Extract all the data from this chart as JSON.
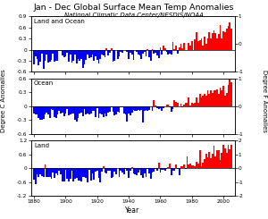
{
  "title": "Jan - Dec Global Surface Mean Temp Anomalies",
  "subtitle": "National Climatic Data Center/NESDIS/NOAA",
  "xlabel": "Year",
  "ylabel_left": "Degree C Anomalies",
  "ylabel_right": "Degree F Anomalies",
  "years_start": 1880,
  "years_end": 2005,
  "panels": [
    {
      "label": "Land and Ocean",
      "ylim_c": [
        -0.6,
        0.9
      ],
      "ylim_f": [
        -1.0,
        1.0
      ],
      "yticks_c": [
        0.9,
        0.6,
        0.3,
        0.0,
        -0.3,
        -0.6
      ],
      "yticks_f": [
        1.0,
        0.0,
        -1.0
      ]
    },
    {
      "label": "Ocean",
      "ylim_c": [
        -0.6,
        0.6
      ],
      "ylim_f": [
        -1.0,
        1.0
      ],
      "yticks_c": [
        0.6,
        0.3,
        0.0,
        -0.3,
        -0.6
      ],
      "yticks_f": [
        1.0,
        0.0,
        -1.0
      ]
    },
    {
      "label": "Land",
      "ylim_c": [
        -1.2,
        1.2
      ],
      "ylim_f": [
        -2.0,
        2.0
      ],
      "yticks_c": [
        1.2,
        0.6,
        0.0,
        -0.6,
        -1.2
      ],
      "yticks_f": [
        2.0,
        1.0,
        0.0,
        -1.0,
        -2.0
      ]
    }
  ],
  "color_pos": "#ff0000",
  "color_neg": "#0000ff",
  "xticks": [
    1880,
    1900,
    1920,
    1940,
    1960,
    1980,
    2000
  ],
  "xlim": [
    1878,
    2007
  ]
}
